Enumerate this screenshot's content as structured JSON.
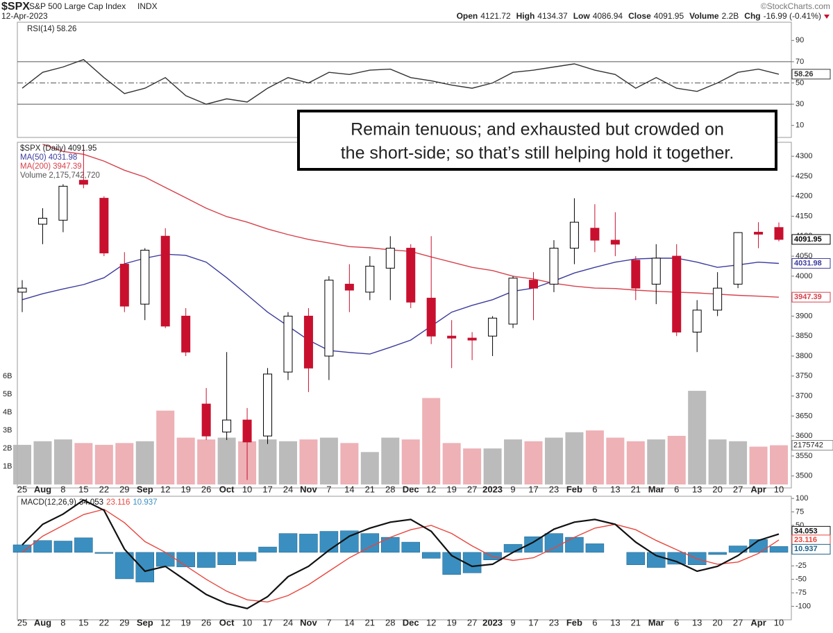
{
  "header": {
    "symbol": "$SPX",
    "name": "S&P 500 Large Cap Index",
    "exchange": "INDX",
    "date": "12-Apr-2023",
    "copyright": "©StockCharts.com",
    "quote": [
      {
        "label": "Open",
        "value": "4121.72"
      },
      {
        "label": "High",
        "value": "4134.37"
      },
      {
        "label": "Low",
        "value": "4086.94"
      },
      {
        "label": "Close",
        "value": "4091.95"
      },
      {
        "label": "Volume",
        "value": "2.2B"
      },
      {
        "label": "Chg",
        "value": "-16.99 (-0.41%)"
      }
    ]
  },
  "annotation": [
    "Remain tenuous; and exhausted but crowded on",
    "the short-side; so that’s still helping hold it together."
  ],
  "chart_data": [
    {
      "type": "line",
      "ylim": [
        0,
        100
      ],
      "yticks": [
        10,
        30,
        50,
        70,
        90
      ],
      "hlines": [
        30,
        50,
        70
      ],
      "grid": false,
      "series": [
        {
          "name": "RSI(14)",
          "color": "#333333",
          "values": [
            45,
            60,
            65,
            72,
            55,
            40,
            45,
            55,
            38,
            30,
            35,
            32,
            45,
            55,
            50,
            60,
            58,
            62,
            63,
            55,
            52,
            48,
            45,
            50,
            60,
            62,
            65,
            68,
            62,
            58,
            45,
            55,
            45,
            42,
            50,
            60,
            63,
            58.26
          ]
        }
      ]
    },
    {
      "type": "candlestick",
      "name": "$SPX (Daily)",
      "ylim": [
        3470,
        4335
      ],
      "yticks": [
        3500,
        3550,
        3600,
        3650,
        3700,
        3750,
        3800,
        3850,
        3900,
        3950,
        4000,
        4050,
        4100,
        4150,
        4200,
        4250,
        4300
      ],
      "grid": false,
      "up_color": "#ffffff",
      "down_color": "#c8102e",
      "categories": [
        "25",
        "Aug",
        "8",
        "15",
        "22",
        "29",
        "Sep",
        "12",
        "19",
        "26",
        "Oct",
        "10",
        "17",
        "24",
        "Nov",
        "7",
        "14",
        "21",
        "28",
        "Dec",
        "12",
        "19",
        "27",
        "2023",
        "9",
        "17",
        "23",
        "Feb",
        "6",
        "13",
        "21",
        "Mar",
        "6",
        "13",
        "20",
        "27",
        "Apr",
        "10"
      ],
      "open": [
        3960,
        4130,
        4140,
        4240,
        4195,
        4030,
        3930,
        4100,
        3900,
        3680,
        3610,
        3640,
        3600,
        3760,
        3900,
        3800,
        3980,
        3960,
        4020,
        4070,
        3945,
        3850,
        3845,
        3850,
        3880,
        3990,
        3980,
        4070,
        4120,
        4090,
        4040,
        3980,
        4050,
        3860,
        3915,
        3980,
        4110,
        4121.72
      ],
      "high": [
        3990,
        4170,
        4230,
        4325,
        4200,
        4060,
        4070,
        4120,
        3920,
        3720,
        3810,
        3670,
        3770,
        3910,
        3920,
        4000,
        4030,
        4050,
        4100,
        4080,
        4100,
        3890,
        3860,
        3900,
        4000,
        4010,
        4090,
        4195,
        4180,
        4160,
        4050,
        4080,
        4080,
        3940,
        4010,
        4110,
        4135,
        4134.37
      ],
      "low": [
        3910,
        4080,
        4110,
        4220,
        4050,
        3910,
        3890,
        3870,
        3800,
        3590,
        3590,
        3490,
        3580,
        3740,
        3710,
        3740,
        3910,
        3940,
        3940,
        3920,
        3830,
        3770,
        3790,
        3800,
        3870,
        3890,
        3960,
        4030,
        4060,
        4050,
        3940,
        3930,
        3850,
        3810,
        3900,
        3970,
        4070,
        4086.94
      ],
      "close": [
        3970,
        4145,
        4225,
        4230,
        4058,
        3925,
        4065,
        3875,
        3810,
        3600,
        3640,
        3585,
        3755,
        3900,
        3770,
        3990,
        3965,
        4025,
        4070,
        3935,
        3850,
        3845,
        3840,
        3895,
        3995,
        3970,
        4070,
        4135,
        4090,
        4080,
        3970,
        4045,
        3860,
        3915,
        3970,
        4109,
        4105,
        4091.95
      ],
      "series": [
        {
          "name": "MA(50)",
          "color": "#3b3b9e",
          "values": [
            3941,
            3956,
            3968,
            3979,
            3996,
            4031,
            4045,
            4055,
            4052,
            4035,
            3996,
            3953,
            3910,
            3875,
            3840,
            3814,
            3809,
            3805,
            3822,
            3840,
            3875,
            3910,
            3927,
            3941,
            3962,
            3970,
            3988,
            4008,
            4022,
            4035,
            4043,
            4045,
            4045,
            4035,
            4022,
            4028,
            4035,
            4031.98
          ]
        },
        {
          "name": "MA(200)",
          "color": "#d6414b",
          "values": [
            null,
            4330,
            4312,
            4305,
            4288,
            4265,
            4248,
            4222,
            4196,
            4170,
            4149,
            4135,
            4118,
            4104,
            4092,
            4083,
            4074,
            4071,
            4066,
            4062,
            4048,
            4035,
            4022,
            4014,
            4000,
            3993,
            3982,
            3975,
            3970,
            3969,
            3965,
            3962,
            3960,
            3958,
            3955,
            3952,
            3950,
            3947.39
          ]
        }
      ]
    },
    {
      "type": "bar",
      "name": "Volume",
      "legend_label": "2,175,742,720",
      "tag": "2175742",
      "ylim": [
        0,
        19
      ],
      "yticks": [
        {
          "value": 1,
          "label": "1B"
        },
        {
          "value": 2,
          "label": "2B"
        },
        {
          "value": 3,
          "label": "3B"
        },
        {
          "value": 4,
          "label": "4B"
        },
        {
          "value": 5,
          "label": "5B"
        },
        {
          "value": 6,
          "label": "6B"
        }
      ],
      "up_color": "#b4b4b4",
      "down_color": "#eba9ae",
      "values": [
        2.2,
        2.4,
        2.5,
        2.3,
        2.2,
        2.3,
        2.4,
        4.1,
        2.6,
        2.5,
        2.6,
        2.4,
        2.5,
        2.4,
        2.5,
        2.6,
        2.3,
        1.8,
        2.6,
        2.5,
        4.8,
        2.3,
        2.0,
        2.0,
        2.5,
        2.4,
        2.6,
        2.9,
        3.0,
        2.6,
        2.4,
        2.5,
        2.7,
        5.2,
        2.5,
        2.4,
        2.1,
        2.17574272
      ]
    },
    {
      "type": "macd",
      "name": "MACD(12,26,9)",
      "ylim": [
        -125,
        104
      ],
      "yticks": [
        -100,
        -75,
        -50,
        -25,
        0,
        25,
        50,
        75,
        100
      ],
      "grid": false,
      "categories": [
        "25",
        "Aug",
        "8",
        "15",
        "22",
        "29",
        "Sep",
        "12",
        "19",
        "26",
        "Oct",
        "10",
        "17",
        "24",
        "Nov",
        "7",
        "14",
        "21",
        "28",
        "Dec",
        "12",
        "19",
        "27",
        "2023",
        "9",
        "17",
        "23",
        "Feb",
        "6",
        "13",
        "21",
        "Mar",
        "6",
        "13",
        "20",
        "27",
        "Apr",
        "10"
      ],
      "series": [
        {
          "name": "MACD",
          "color": "#111111",
          "values": [
            14,
            52,
            71,
            97,
            78,
            6,
            -35,
            -26,
            -52,
            -78,
            -95,
            -104,
            -82,
            -45,
            -26,
            4,
            30,
            45,
            56,
            61,
            39,
            -6,
            -26,
            -22,
            0,
            19,
            43,
            56,
            61,
            52,
            19,
            -6,
            -17,
            -35,
            -26,
            -6,
            22,
            34.053
          ]
        },
        {
          "name": "Signal",
          "color": "#e8453c",
          "values": [
            0,
            30,
            50,
            70,
            80,
            55,
            20,
            0,
            -25,
            -50,
            -72,
            -88,
            -92,
            -80,
            -60,
            -35,
            -10,
            10,
            28,
            42,
            50,
            35,
            12,
            -8,
            -15,
            -10,
            8,
            28,
            45,
            52,
            42,
            22,
            5,
            -12,
            -22,
            -18,
            -2,
            23.116
          ]
        },
        {
          "name": "Histogram",
          "color": "#3a8fc0",
          "values": [
            14,
            22,
            21,
            27,
            -2,
            -49,
            -55,
            -26,
            -27,
            -28,
            -23,
            -16,
            10,
            35,
            34,
            39,
            40,
            35,
            28,
            19,
            -11,
            -41,
            -38,
            -14,
            15,
            29,
            35,
            28,
            16,
            0,
            -23,
            -28,
            -22,
            -23,
            -4,
            12,
            24,
            10.937
          ]
        }
      ]
    }
  ]
}
